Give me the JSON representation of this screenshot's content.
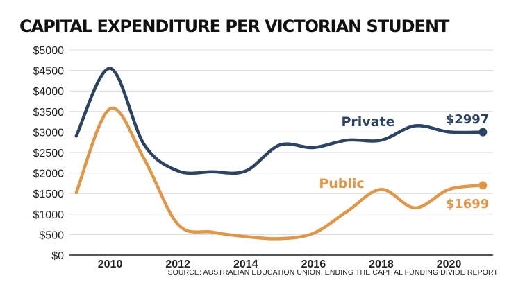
{
  "title": "CAPITAL EXPENDITURE PER VICTORIAN STUDENT",
  "source": "SOURCE: AUSTRALIAN EDUCATION UNION, ENDING THE CAPITAL FUNDING DIVIDE REPORT",
  "chart_data": {
    "type": "line",
    "title": "CAPITAL EXPENDITURE PER VICTORIAN STUDENT",
    "xlabel": "",
    "ylabel": "",
    "x": [
      2009,
      2010,
      2011,
      2012,
      2013,
      2014,
      2015,
      2016,
      2017,
      2018,
      2019,
      2020,
      2021
    ],
    "xlim": [
      2008.8,
      2021.3
    ],
    "ylim": [
      0,
      5000
    ],
    "x_ticks": [
      {
        "value": 2010,
        "label": "2010"
      },
      {
        "value": 2012,
        "label": "2012"
      },
      {
        "value": 2014,
        "label": "2014"
      },
      {
        "value": 2016,
        "label": "2016"
      },
      {
        "value": 2018,
        "label": "2018"
      },
      {
        "value": 2020,
        "label": "2020"
      }
    ],
    "y_ticks": [
      {
        "value": 0,
        "label": "$0"
      },
      {
        "value": 500,
        "label": "$500"
      },
      {
        "value": 1000,
        "label": "$1000"
      },
      {
        "value": 1500,
        "label": "$1500"
      },
      {
        "value": 2000,
        "label": "$2000"
      },
      {
        "value": 2500,
        "label": "$2500"
      },
      {
        "value": 3000,
        "label": "$3000"
      },
      {
        "value": 3500,
        "label": "$3500"
      },
      {
        "value": 4000,
        "label": "$4000"
      },
      {
        "value": 4500,
        "label": "$4500"
      },
      {
        "value": 5000,
        "label": "$5000"
      }
    ],
    "grid": true,
    "series": [
      {
        "name": "Private",
        "color": "#2d4362",
        "values": [
          2900,
          4550,
          2700,
          2050,
          2030,
          2050,
          2680,
          2620,
          2800,
          2800,
          3150,
          3000,
          2997
        ],
        "end_label": "$2997"
      },
      {
        "name": "Public",
        "color": "#e09749",
        "values": [
          1520,
          3570,
          2350,
          750,
          560,
          450,
          400,
          530,
          1070,
          1600,
          1150,
          1600,
          1699
        ],
        "end_label": "$1699"
      }
    ],
    "colors": {
      "grid": "#d8d8d8",
      "axis": "#222222"
    }
  }
}
